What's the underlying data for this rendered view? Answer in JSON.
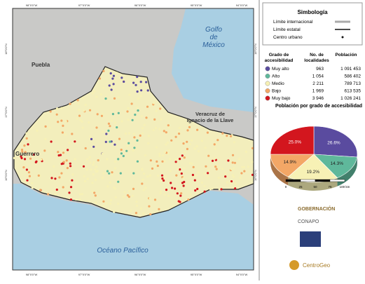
{
  "map": {
    "coord_top": [
      "98°0'0\"W",
      "97°0'0\"W",
      "96°0'0\"W",
      "95°0'0\"W",
      "94°0'0\"W"
    ],
    "coord_left": [
      "18°0'0\"N",
      "17°0'0\"N",
      "16°0'0\"N"
    ],
    "gulf": [
      "Golfo",
      "de",
      "México"
    ],
    "puebla": "Puebla",
    "veracruz": [
      "Veracruz de",
      "Ignacio de la Llave"
    ],
    "guerrero": "Guerrero",
    "ocean": "Océano Pacífico"
  },
  "legend": {
    "title": "Simbología",
    "items": [
      "Límite internacional",
      "Límite estatal",
      "Centro urbano"
    ]
  },
  "table": {
    "headers": [
      "Grado de accesibilidad",
      "No. de localidades",
      "Población"
    ],
    "rows": [
      {
        "name": "Muy alto",
        "localities": "963",
        "population": "1 091 453",
        "color": "#5a4b9f"
      },
      {
        "name": "Alto",
        "localities": "1 054",
        "population": "586 402",
        "color": "#5fb89b"
      },
      {
        "name": "Medio",
        "localities": "2 211",
        "population": "789 713",
        "color": "#f7f1b5"
      },
      {
        "name": "Bajo",
        "localities": "1 969",
        "population": "613 535",
        "color": "#f3a766"
      },
      {
        "name": "Muy bajo",
        "localities": "3 946",
        "population": "1 026 241",
        "color": "#d3161e"
      }
    ]
  },
  "chart_data": {
    "type": "pie",
    "title": "Población por grado de accesibilidad",
    "values": [
      26.6,
      14.3,
      19.2,
      14.9,
      25.0
    ],
    "value_labels": [
      "26.6%",
      "14.3%",
      "19.2%",
      "14.9%",
      "25.0%"
    ]
  },
  "scale": {
    "ticks": [
      "0",
      "25",
      "50",
      "75",
      "100 km"
    ]
  },
  "logos": [
    "GOBERNACIÓN",
    "CONAPO",
    "CentroGeo"
  ]
}
